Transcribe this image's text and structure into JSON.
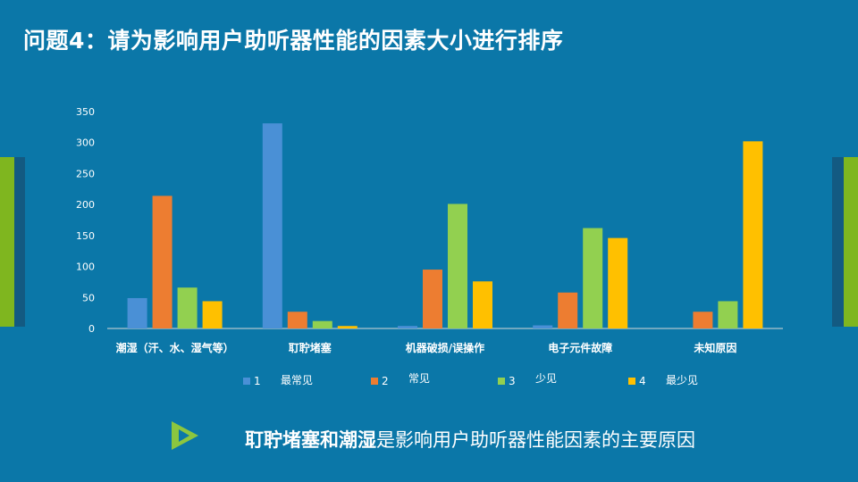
{
  "header": {
    "title": "问题4：请为影响用户助听器性能的因素大小进行排序"
  },
  "chart_data": {
    "type": "bar",
    "title": "",
    "xlabel": "",
    "ylabel": "",
    "ylim": [
      0,
      350
    ],
    "yticks": [
      0,
      50,
      100,
      150,
      200,
      250,
      300,
      350
    ],
    "grid": false,
    "legend_position": "bottom",
    "categories": [
      "潮湿（汗、水、湿气等）",
      "耵聍堵塞",
      "机器破损/误操作",
      "电子元件故障",
      "未知原因"
    ],
    "series": [
      {
        "name": "1",
        "desc": "最常见",
        "color": "#4a90d6",
        "values": [
          49,
          331,
          4,
          5,
          0
        ]
      },
      {
        "name": "2",
        "desc": "常见",
        "color": "#ed7d31",
        "values": [
          214,
          27,
          95,
          58,
          27
        ]
      },
      {
        "name": "3",
        "desc": "少见",
        "color": "#92d050",
        "values": [
          66,
          12,
          201,
          162,
          44
        ]
      },
      {
        "name": "4",
        "desc": "最少见",
        "color": "#ffc000",
        "values": [
          44,
          4,
          76,
          146,
          302
        ]
      }
    ]
  },
  "conclusion": {
    "strong": "耵聍堵塞和潮湿",
    "rest": "是影响用户助听器性能因素的主要原因"
  },
  "colors": {
    "background": "#0b77a8",
    "accent_green": "#7fb61f",
    "accent_dark": "#135a82"
  }
}
